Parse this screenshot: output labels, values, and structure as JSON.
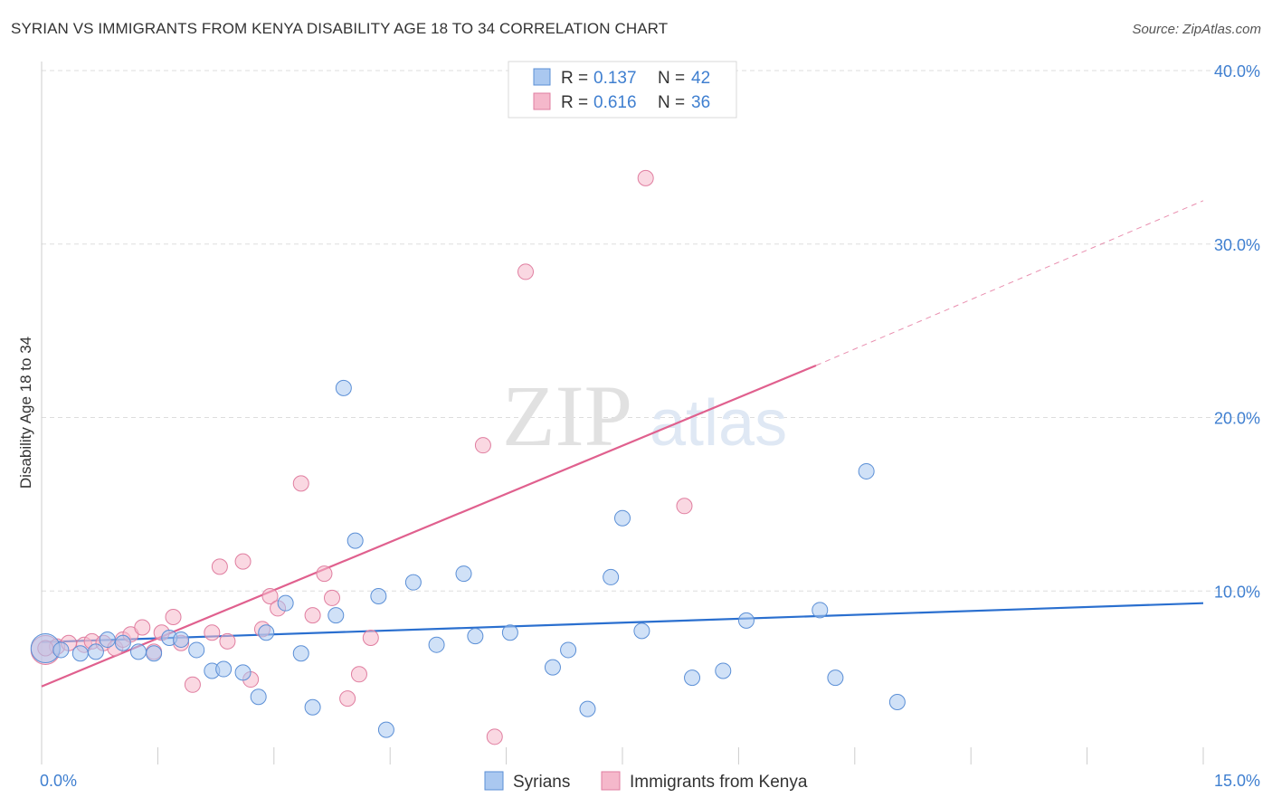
{
  "title": "SYRIAN VS IMMIGRANTS FROM KENYA DISABILITY AGE 18 TO 34 CORRELATION CHART",
  "source": "Source: ZipAtlas.com",
  "watermark": {
    "zip": "ZIP",
    "atlas": "atlas"
  },
  "colors": {
    "blue_fill": "#aac8f0",
    "blue_stroke": "#5b8fd6",
    "blue_line": "#2a6fcf",
    "pink_fill": "#f5b8cb",
    "pink_stroke": "#e07ea0",
    "pink_line": "#e0608e",
    "tick_text": "#3f7fd0",
    "grid": "#dddddd"
  },
  "chart_data": {
    "type": "scatter",
    "title": "SYRIAN VS IMMIGRANTS FROM KENYA DISABILITY AGE 18 TO 34 CORRELATION CHART",
    "xlabel": "",
    "ylabel": "Disability Age 18 to 34",
    "xlim": [
      0,
      15
    ],
    "ylim": [
      0,
      40
    ],
    "x_tick_labels": [
      "0.0%",
      "15.0%"
    ],
    "x_tick_values": [
      0,
      15
    ],
    "y_ticks": [
      {
        "value": 10,
        "label": "10.0%"
      },
      {
        "value": 20,
        "label": "20.0%"
      },
      {
        "value": 30,
        "label": "30.0%"
      },
      {
        "value": 40,
        "label": "40.0%"
      }
    ],
    "grid": true,
    "legend_position": "top-center",
    "legend": [
      {
        "series": "Syrians",
        "r_label": "R = ",
        "r_value": "0.137",
        "n_label": "N = ",
        "n_value": "42"
      },
      {
        "series": "Immigrants from Kenya",
        "r_label": "R = ",
        "r_value": "0.616",
        "n_label": "N = ",
        "n_value": "36"
      }
    ],
    "series": [
      {
        "name": "Syrians",
        "color": "blue",
        "points": [
          [
            0.05,
            6.7
          ],
          [
            0.25,
            6.6
          ],
          [
            0.5,
            6.4
          ],
          [
            0.7,
            6.5
          ],
          [
            0.85,
            7.2
          ],
          [
            1.05,
            7.0
          ],
          [
            1.25,
            6.5
          ],
          [
            1.45,
            6.4
          ],
          [
            1.65,
            7.3
          ],
          [
            1.8,
            7.2
          ],
          [
            2.0,
            6.6
          ],
          [
            2.2,
            5.4
          ],
          [
            2.35,
            5.5
          ],
          [
            2.6,
            5.3
          ],
          [
            2.8,
            3.9
          ],
          [
            2.9,
            7.6
          ],
          [
            3.15,
            9.3
          ],
          [
            3.35,
            6.4
          ],
          [
            3.5,
            3.3
          ],
          [
            3.8,
            8.6
          ],
          [
            3.9,
            21.7
          ],
          [
            4.05,
            12.9
          ],
          [
            4.35,
            9.7
          ],
          [
            4.45,
            2.0
          ],
          [
            4.8,
            10.5
          ],
          [
            5.1,
            6.9
          ],
          [
            5.45,
            11.0
          ],
          [
            5.6,
            7.4
          ],
          [
            6.05,
            7.6
          ],
          [
            6.6,
            5.6
          ],
          [
            6.8,
            6.6
          ],
          [
            7.05,
            3.2
          ],
          [
            7.35,
            10.8
          ],
          [
            7.5,
            14.2
          ],
          [
            7.75,
            7.7
          ],
          [
            8.4,
            5.0
          ],
          [
            8.8,
            5.4
          ],
          [
            9.1,
            8.3
          ],
          [
            10.05,
            8.9
          ],
          [
            10.25,
            5.0
          ],
          [
            10.65,
            16.9
          ],
          [
            11.05,
            3.6
          ]
        ],
        "trend": {
          "x": [
            0,
            15
          ],
          "y": [
            7.05,
            9.3
          ]
        }
      },
      {
        "name": "Immigrants from Kenya",
        "color": "pink",
        "points": [
          [
            0.05,
            6.6
          ],
          [
            0.2,
            6.8
          ],
          [
            0.35,
            7.0
          ],
          [
            0.55,
            6.9
          ],
          [
            0.65,
            7.1
          ],
          [
            0.8,
            7.0
          ],
          [
            0.95,
            6.7
          ],
          [
            1.05,
            7.2
          ],
          [
            1.15,
            7.5
          ],
          [
            1.3,
            7.9
          ],
          [
            1.45,
            6.5
          ],
          [
            1.55,
            7.6
          ],
          [
            1.7,
            8.5
          ],
          [
            1.8,
            7.0
          ],
          [
            1.95,
            4.6
          ],
          [
            2.2,
            7.6
          ],
          [
            2.3,
            11.4
          ],
          [
            2.4,
            7.1
          ],
          [
            2.6,
            11.7
          ],
          [
            2.7,
            4.9
          ],
          [
            2.85,
            7.8
          ],
          [
            2.95,
            9.7
          ],
          [
            3.05,
            9.0
          ],
          [
            3.35,
            16.2
          ],
          [
            3.5,
            8.6
          ],
          [
            3.65,
            11.0
          ],
          [
            3.75,
            9.6
          ],
          [
            3.95,
            3.8
          ],
          [
            4.1,
            5.2
          ],
          [
            4.25,
            7.3
          ],
          [
            5.7,
            18.4
          ],
          [
            5.85,
            1.6
          ],
          [
            6.25,
            28.4
          ],
          [
            7.8,
            33.8
          ],
          [
            8.3,
            14.9
          ],
          [
            0.05,
            6.7
          ]
        ],
        "trend": {
          "x": [
            0,
            10.0
          ],
          "y": [
            4.5,
            23.0
          ]
        },
        "trend_dashed": {
          "x": [
            10.0,
            15.0
          ],
          "y": [
            23.0,
            32.5
          ]
        }
      }
    ],
    "bottom_legend": [
      "Syrians",
      "Immigrants from Kenya"
    ]
  }
}
